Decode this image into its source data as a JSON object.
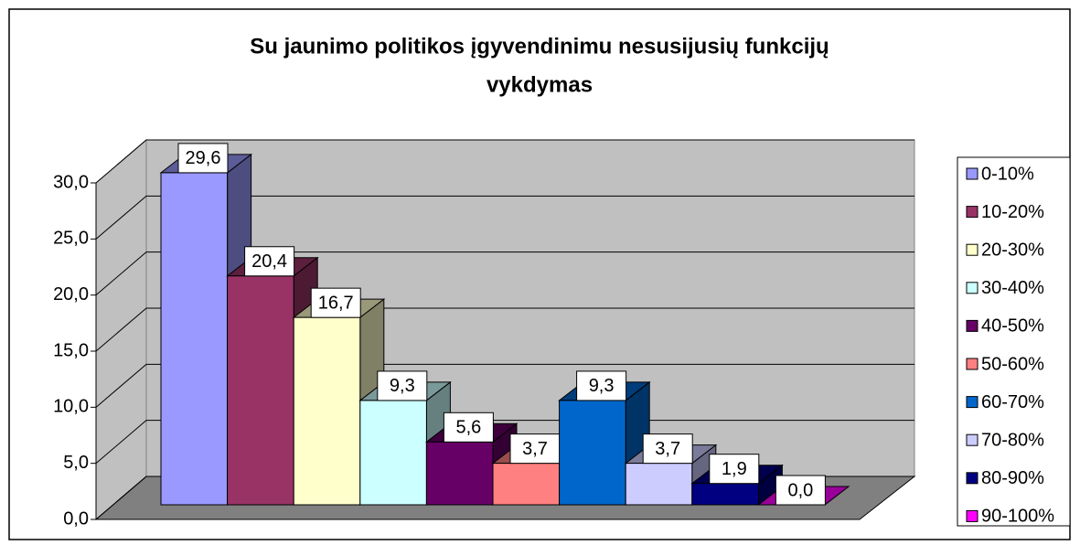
{
  "chart_data": {
    "type": "bar3d",
    "title": [
      "Su jaunimo politikos įgyvendinimu nesusijusių funkcijų",
      "vykdymas"
    ],
    "series": [
      {
        "name": "0-10%",
        "color": "#9999ff",
        "values": [
          29.6
        ],
        "value_labels": [
          "29,6"
        ]
      },
      {
        "name": "10-20%",
        "color": "#993366",
        "values": [
          20.4
        ],
        "value_labels": [
          "20,4"
        ]
      },
      {
        "name": "20-30%",
        "color": "#ffffcc",
        "values": [
          16.7
        ],
        "value_labels": [
          "16,7"
        ]
      },
      {
        "name": "30-40%",
        "color": "#ccffff",
        "values": [
          9.3
        ],
        "value_labels": [
          "9,3"
        ]
      },
      {
        "name": "40-50%",
        "color": "#660066",
        "values": [
          5.6
        ],
        "value_labels": [
          "5,6"
        ]
      },
      {
        "name": "50-60%",
        "color": "#ff8080",
        "values": [
          3.7
        ],
        "value_labels": [
          "3,7"
        ]
      },
      {
        "name": "60-70%",
        "color": "#0066cc",
        "values": [
          9.3
        ],
        "value_labels": [
          "9,3"
        ]
      },
      {
        "name": "70-80%",
        "color": "#ccccff",
        "values": [
          3.7
        ],
        "value_labels": [
          "3,7"
        ]
      },
      {
        "name": "80-90%",
        "color": "#000080",
        "values": [
          1.9
        ],
        "value_labels": [
          "1,9"
        ]
      },
      {
        "name": "90-100%",
        "color": "#ff00ff",
        "values": [
          0
        ],
        "value_labels": [
          "0,0"
        ]
      }
    ],
    "ylim": [
      0,
      30
    ],
    "yticks": [
      {
        "value": 0,
        "label": "0,0"
      },
      {
        "value": 5,
        "label": "5,0"
      },
      {
        "value": 10,
        "label": "10,0"
      },
      {
        "value": 15,
        "label": "15,0"
      },
      {
        "value": 20,
        "label": "20,0"
      },
      {
        "value": 25,
        "label": "25,0"
      },
      {
        "value": 30,
        "label": "30,0"
      }
    ],
    "grid": true,
    "legend": "right"
  }
}
